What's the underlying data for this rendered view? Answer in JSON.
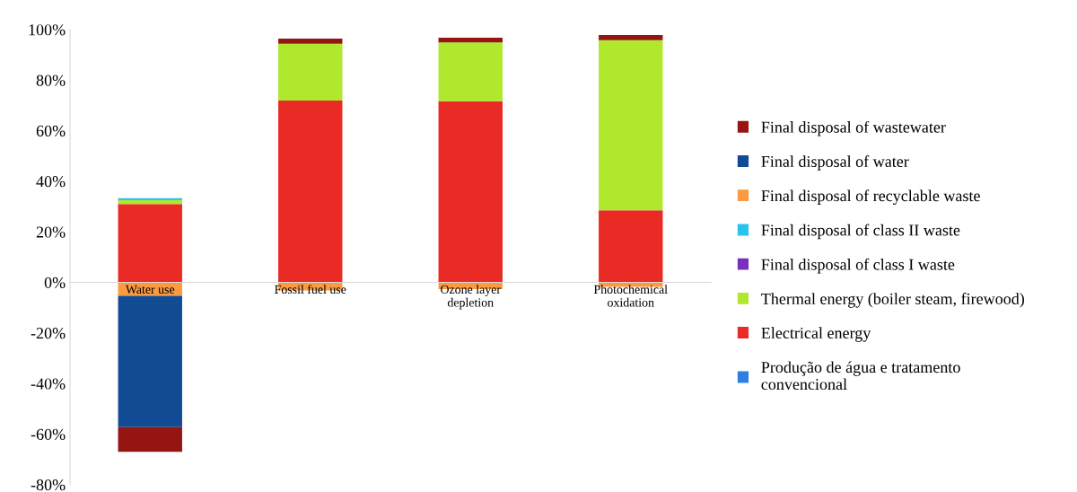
{
  "chart_data": {
    "type": "bar",
    "stacked": true,
    "categories": [
      "Water use",
      "Fossil fuel use",
      "Ozone layer\ndepletion",
      "Photochemical\noxidation"
    ],
    "series": [
      {
        "name": "Produção de água e tratamento\nconvencional",
        "color": "#2e7fe0",
        "values": [
          0,
          0,
          0,
          0
        ]
      },
      {
        "name": "Electrical energy",
        "color": "#ea2a24",
        "values": [
          31,
          71.9,
          71.6,
          28.5
        ]
      },
      {
        "name": "Thermal energy (boiler steam, firewood)",
        "color": "#afe82c",
        "values": [
          1.5,
          22.4,
          23.3,
          67.3
        ]
      },
      {
        "name": "Final disposal of class I waste",
        "color": "#7b2fbe",
        "values": [
          0,
          0.2,
          0,
          0
        ]
      },
      {
        "name": "Final disposal of class II waste",
        "color": "#29c4ee",
        "values": [
          0.8,
          0,
          0,
          0
        ]
      },
      {
        "name": "Final disposal of recyclable waste",
        "color": "#fb9a40",
        "values": [
          -5.3,
          -3.2,
          -2.7,
          -1.8
        ]
      },
      {
        "name": "Final disposal of water",
        "color": "#104b94",
        "values": [
          -52,
          0,
          0,
          0
        ]
      },
      {
        "name": "Final disposal of wastewater",
        "color": "#951512",
        "values": [
          -9.7,
          1.9,
          1.9,
          2
        ]
      }
    ],
    "ylim": [
      -80,
      100
    ],
    "yticks": [
      {
        "value": -80,
        "label": "-80%"
      },
      {
        "value": -60,
        "label": "-60%"
      },
      {
        "value": -40,
        "label": "-40%"
      },
      {
        "value": -20,
        "label": "-20%"
      },
      {
        "value": 0,
        "label": "0%"
      },
      {
        "value": 20,
        "label": "20%"
      },
      {
        "value": 40,
        "label": "40%"
      },
      {
        "value": 60,
        "label": "60%"
      },
      {
        "value": 80,
        "label": "80%"
      },
      {
        "value": 100,
        "label": "100%"
      }
    ],
    "grid": false,
    "legend": "right"
  }
}
